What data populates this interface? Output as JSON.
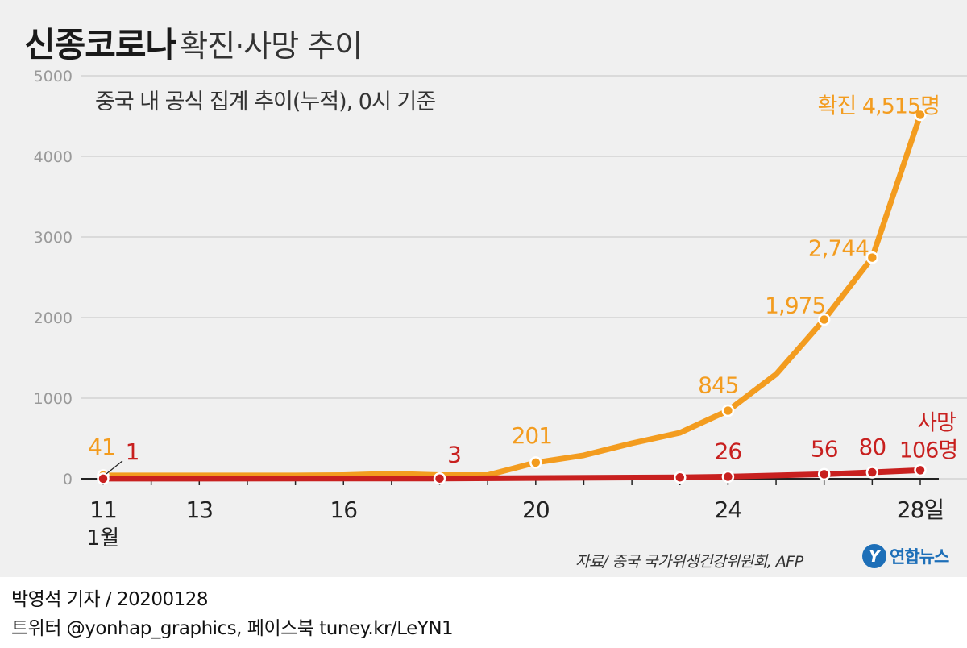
{
  "header": {
    "title_main": "신종코로나",
    "title_sub": "확진·사망 추이",
    "subtitle": "중국 내 공식 집계 추이(누적), 0시 기준"
  },
  "source": "자료/ 중국 국가위생건강위원회, AFP",
  "logo": {
    "mark": "Y",
    "text": "연합뉴스",
    "color": "#1d6fb8"
  },
  "footer": {
    "line1": "박영석 기자 /  20200128",
    "line2": "트위터 @yonhap_graphics, 페이스북 tuney.kr/LeYN1"
  },
  "colors": {
    "confirmed": "#f39c1f",
    "deaths": "#c8201f",
    "grid": "#c4c4c4",
    "axis": "#222222"
  },
  "chart_data": {
    "type": "line",
    "xlim": [
      11,
      28
    ],
    "ylim": [
      0,
      5000
    ],
    "yticks": [
      0,
      1000,
      2000,
      3000,
      4000,
      5000
    ],
    "xticks": [
      {
        "x": 11,
        "label": "11"
      },
      {
        "x": 13,
        "label": "13"
      },
      {
        "x": 16,
        "label": "16"
      },
      {
        "x": 20,
        "label": "20"
      },
      {
        "x": 24,
        "label": "24"
      },
      {
        "x": 28,
        "label": "28일"
      }
    ],
    "x_month_label": "1월",
    "grid": "horizontal",
    "series": [
      {
        "name": "확진",
        "color": "#f39c1f",
        "points": [
          {
            "x": 11,
            "y": 41,
            "marker": true,
            "label": "41"
          },
          {
            "x": 12,
            "y": 41
          },
          {
            "x": 13,
            "y": 41
          },
          {
            "x": 14,
            "y": 41
          },
          {
            "x": 15,
            "y": 41
          },
          {
            "x": 16,
            "y": 45
          },
          {
            "x": 17,
            "y": 62
          },
          {
            "x": 18,
            "y": 45
          },
          {
            "x": 19,
            "y": 45
          },
          {
            "x": 20,
            "y": 201,
            "marker": true,
            "label": "201"
          },
          {
            "x": 21,
            "y": 291
          },
          {
            "x": 22,
            "y": 440
          },
          {
            "x": 23,
            "y": 571
          },
          {
            "x": 24,
            "y": 845,
            "marker": true,
            "label": "845"
          },
          {
            "x": 25,
            "y": 1297
          },
          {
            "x": 26,
            "y": 1975,
            "marker": true,
            "label": "1,975"
          },
          {
            "x": 27,
            "y": 2744,
            "marker": true,
            "label": "2,744"
          },
          {
            "x": 28,
            "y": 4515,
            "marker": true,
            "label": "4,515명",
            "label_prefix": "확진"
          }
        ]
      },
      {
        "name": "사망",
        "color": "#c8201f",
        "points": [
          {
            "x": 11,
            "y": 1,
            "marker": true,
            "label": "1"
          },
          {
            "x": 18,
            "y": 3,
            "marker": true,
            "label": "3"
          },
          {
            "x": 23,
            "y": 17,
            "marker": true
          },
          {
            "x": 24,
            "y": 26,
            "marker": true,
            "label": "26"
          },
          {
            "x": 25,
            "y": 41
          },
          {
            "x": 26,
            "y": 56,
            "marker": true,
            "label": "56"
          },
          {
            "x": 27,
            "y": 80,
            "marker": true,
            "label": "80"
          },
          {
            "x": 28,
            "y": 106,
            "marker": true,
            "label": "106명",
            "label_prefix": "사망"
          }
        ]
      }
    ]
  }
}
